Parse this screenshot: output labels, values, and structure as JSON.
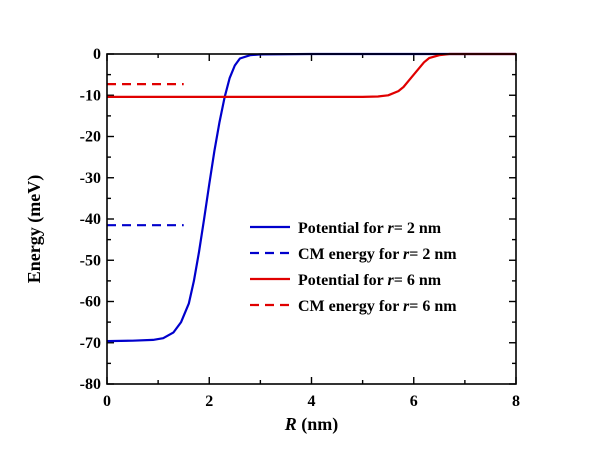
{
  "chart_data": {
    "type": "line",
    "title": "",
    "xlabel": {
      "symbol": "R",
      "unit": " (nm)"
    },
    "ylabel": "Energy (meV)",
    "xlim": [
      0,
      8
    ],
    "ylim": [
      -80,
      0
    ],
    "x_ticks": [
      0,
      2,
      4,
      6,
      8
    ],
    "y_ticks": [
      0,
      -10,
      -20,
      -30,
      -40,
      -50,
      -60,
      -70,
      -80
    ],
    "grid": false,
    "legend_position": "center-right",
    "series": [
      {
        "name": "Potential for r= 2 nm",
        "name_parts": [
          "Potential for ",
          "r",
          "= 2 nm"
        ],
        "color": "#0000cc",
        "dash": "solid",
        "x": [
          0,
          0.5,
          0.9,
          1.1,
          1.3,
          1.45,
          1.6,
          1.7,
          1.8,
          1.9,
          2.0,
          2.1,
          2.2,
          2.3,
          2.4,
          2.5,
          2.6,
          2.8,
          3.0,
          4.0,
          6.0,
          8.0
        ],
        "y": [
          -69.6,
          -69.5,
          -69.3,
          -68.9,
          -67.5,
          -65.0,
          -60.5,
          -55.0,
          -48.0,
          -40.0,
          -31.5,
          -23.5,
          -16.5,
          -10.5,
          -5.8,
          -2.8,
          -1.1,
          -0.3,
          -0.1,
          0,
          0,
          0
        ]
      },
      {
        "name": "CM energy for r= 2 nm",
        "name_parts": [
          "CM energy for ",
          "r",
          "= 2 nm"
        ],
        "color": "#0000cc",
        "dash": "dashed",
        "x": [
          0,
          1.5
        ],
        "y": [
          -41.5,
          -41.5
        ]
      },
      {
        "name": "Potential for r= 6 nm",
        "name_parts": [
          "Potential for ",
          "r",
          "= 6 nm"
        ],
        "color": "#e00000",
        "dash": "solid",
        "x": [
          0,
          5.0,
          5.3,
          5.5,
          5.7,
          5.8,
          5.9,
          6.0,
          6.1,
          6.2,
          6.3,
          6.5,
          6.7,
          7.0,
          8.0
        ],
        "y": [
          -10.4,
          -10.4,
          -10.3,
          -10.0,
          -9.0,
          -8.0,
          -6.5,
          -5.0,
          -3.5,
          -2.0,
          -1.0,
          -0.3,
          0,
          0,
          0
        ]
      },
      {
        "name": "CM energy for r= 6 nm",
        "name_parts": [
          "CM energy for ",
          "r",
          "= 6 nm"
        ],
        "color": "#e00000",
        "dash": "dashed",
        "x": [
          0,
          1.5
        ],
        "y": [
          -7.3,
          -7.3
        ]
      }
    ]
  }
}
